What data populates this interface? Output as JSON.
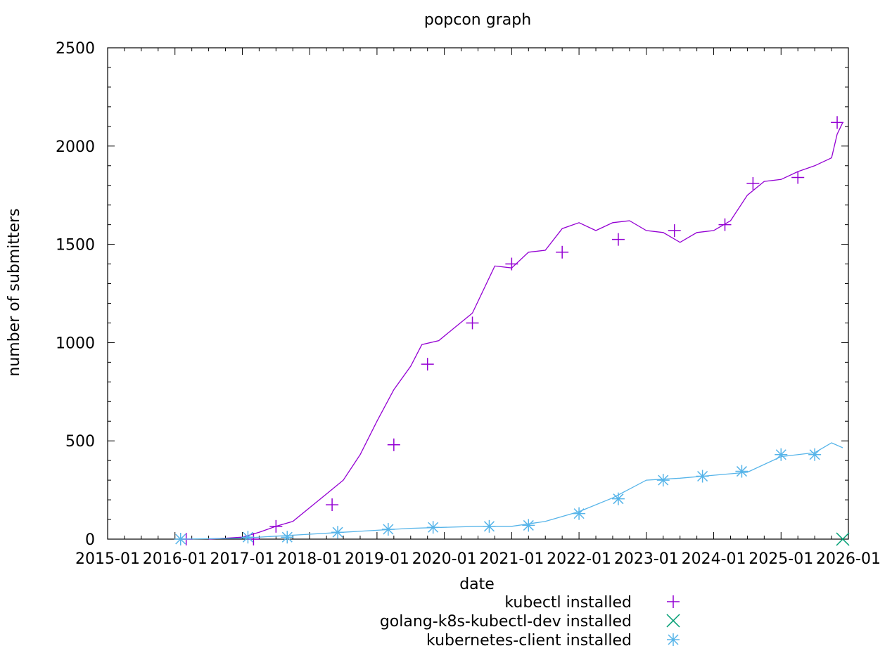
{
  "chart_data": {
    "type": "line",
    "title": "popcon graph",
    "xlabel": "date",
    "ylabel": "number of submitters",
    "xlim": [
      "2015-01",
      "2026-01"
    ],
    "ylim": [
      0,
      2500
    ],
    "x_ticks": [
      "2015-01",
      "2016-01",
      "2017-01",
      "2018-01",
      "2019-01",
      "2020-01",
      "2021-01",
      "2022-01",
      "2023-01",
      "2024-01",
      "2025-01",
      "2026-01"
    ],
    "y_ticks": [
      0,
      500,
      1000,
      1500,
      2000,
      2500
    ],
    "grid": false,
    "legend_position": "bottom-center",
    "series": [
      {
        "name": "kubectl installed",
        "color": "#9400d3",
        "marker": "plus",
        "points": [
          [
            "2016-07",
            0
          ],
          [
            "2016-10",
            5
          ],
          [
            "2017-01",
            10
          ],
          [
            "2017-04",
            35
          ],
          [
            "2017-07",
            65
          ],
          [
            "2017-10",
            90
          ],
          [
            "2018-01",
            160
          ],
          [
            "2018-04",
            230
          ],
          [
            "2018-07",
            300
          ],
          [
            "2018-10",
            430
          ],
          [
            "2019-01",
            600
          ],
          [
            "2019-04",
            760
          ],
          [
            "2019-07",
            880
          ],
          [
            "2019-09",
            990
          ],
          [
            "2019-12",
            1010
          ],
          [
            "2020-03",
            1080
          ],
          [
            "2020-06",
            1150
          ],
          [
            "2020-08",
            1270
          ],
          [
            "2020-10",
            1390
          ],
          [
            "2021-01",
            1380
          ],
          [
            "2021-04",
            1460
          ],
          [
            "2021-07",
            1470
          ],
          [
            "2021-10",
            1580
          ],
          [
            "2022-01",
            1610
          ],
          [
            "2022-04",
            1570
          ],
          [
            "2022-07",
            1610
          ],
          [
            "2022-10",
            1620
          ],
          [
            "2023-01",
            1570
          ],
          [
            "2023-04",
            1560
          ],
          [
            "2023-07",
            1510
          ],
          [
            "2023-10",
            1560
          ],
          [
            "2024-01",
            1570
          ],
          [
            "2024-04",
            1620
          ],
          [
            "2024-07",
            1750
          ],
          [
            "2024-10",
            1820
          ],
          [
            "2025-01",
            1830
          ],
          [
            "2025-04",
            1870
          ],
          [
            "2025-07",
            1900
          ],
          [
            "2025-10",
            1940
          ],
          [
            "2025-11",
            2060
          ],
          [
            "2025-12",
            2120
          ]
        ],
        "markers": [
          [
            "2016-03",
            0
          ],
          [
            "2017-03",
            0
          ],
          [
            "2017-07",
            65
          ],
          [
            "2018-05",
            175
          ],
          [
            "2019-04",
            480
          ],
          [
            "2019-10",
            890
          ],
          [
            "2020-06",
            1100
          ],
          [
            "2021-01",
            1400
          ],
          [
            "2021-10",
            1460
          ],
          [
            "2022-08",
            1525
          ],
          [
            "2023-06",
            1570
          ],
          [
            "2024-03",
            1600
          ],
          [
            "2024-08",
            1810
          ],
          [
            "2025-04",
            1840
          ],
          [
            "2025-11",
            2120
          ]
        ]
      },
      {
        "name": "golang-k8s-kubectl-dev installed",
        "color": "#009e73",
        "marker": "cross",
        "points": [
          [
            "2025-12",
            0
          ]
        ],
        "markers": [
          [
            "2025-12",
            0
          ]
        ]
      },
      {
        "name": "kubernetes-client installed",
        "color": "#56b4e9",
        "marker": "star",
        "points": [
          [
            "2016-02",
            0
          ],
          [
            "2016-07",
            2
          ],
          [
            "2017-01",
            5
          ],
          [
            "2017-07",
            15
          ],
          [
            "2018-01",
            25
          ],
          [
            "2018-07",
            35
          ],
          [
            "2019-01",
            45
          ],
          [
            "2019-07",
            55
          ],
          [
            "2020-01",
            60
          ],
          [
            "2020-07",
            65
          ],
          [
            "2021-01",
            65
          ],
          [
            "2021-07",
            90
          ],
          [
            "2022-01",
            140
          ],
          [
            "2022-07",
            210
          ],
          [
            "2023-01",
            300
          ],
          [
            "2023-07",
            310
          ],
          [
            "2024-01",
            325
          ],
          [
            "2024-07",
            340
          ],
          [
            "2025-01",
            420
          ],
          [
            "2025-07",
            440
          ],
          [
            "2025-10",
            490
          ],
          [
            "2025-12",
            465
          ]
        ],
        "markers": [
          [
            "2016-02",
            0
          ],
          [
            "2017-02",
            10
          ],
          [
            "2017-09",
            10
          ],
          [
            "2018-06",
            35
          ],
          [
            "2019-03",
            50
          ],
          [
            "2019-11",
            60
          ],
          [
            "2020-09",
            65
          ],
          [
            "2021-04",
            70
          ],
          [
            "2022-01",
            130
          ],
          [
            "2022-08",
            205
          ],
          [
            "2023-04",
            300
          ],
          [
            "2023-11",
            320
          ],
          [
            "2024-06",
            345
          ],
          [
            "2025-01",
            430
          ],
          [
            "2025-07",
            430
          ]
        ]
      }
    ]
  }
}
